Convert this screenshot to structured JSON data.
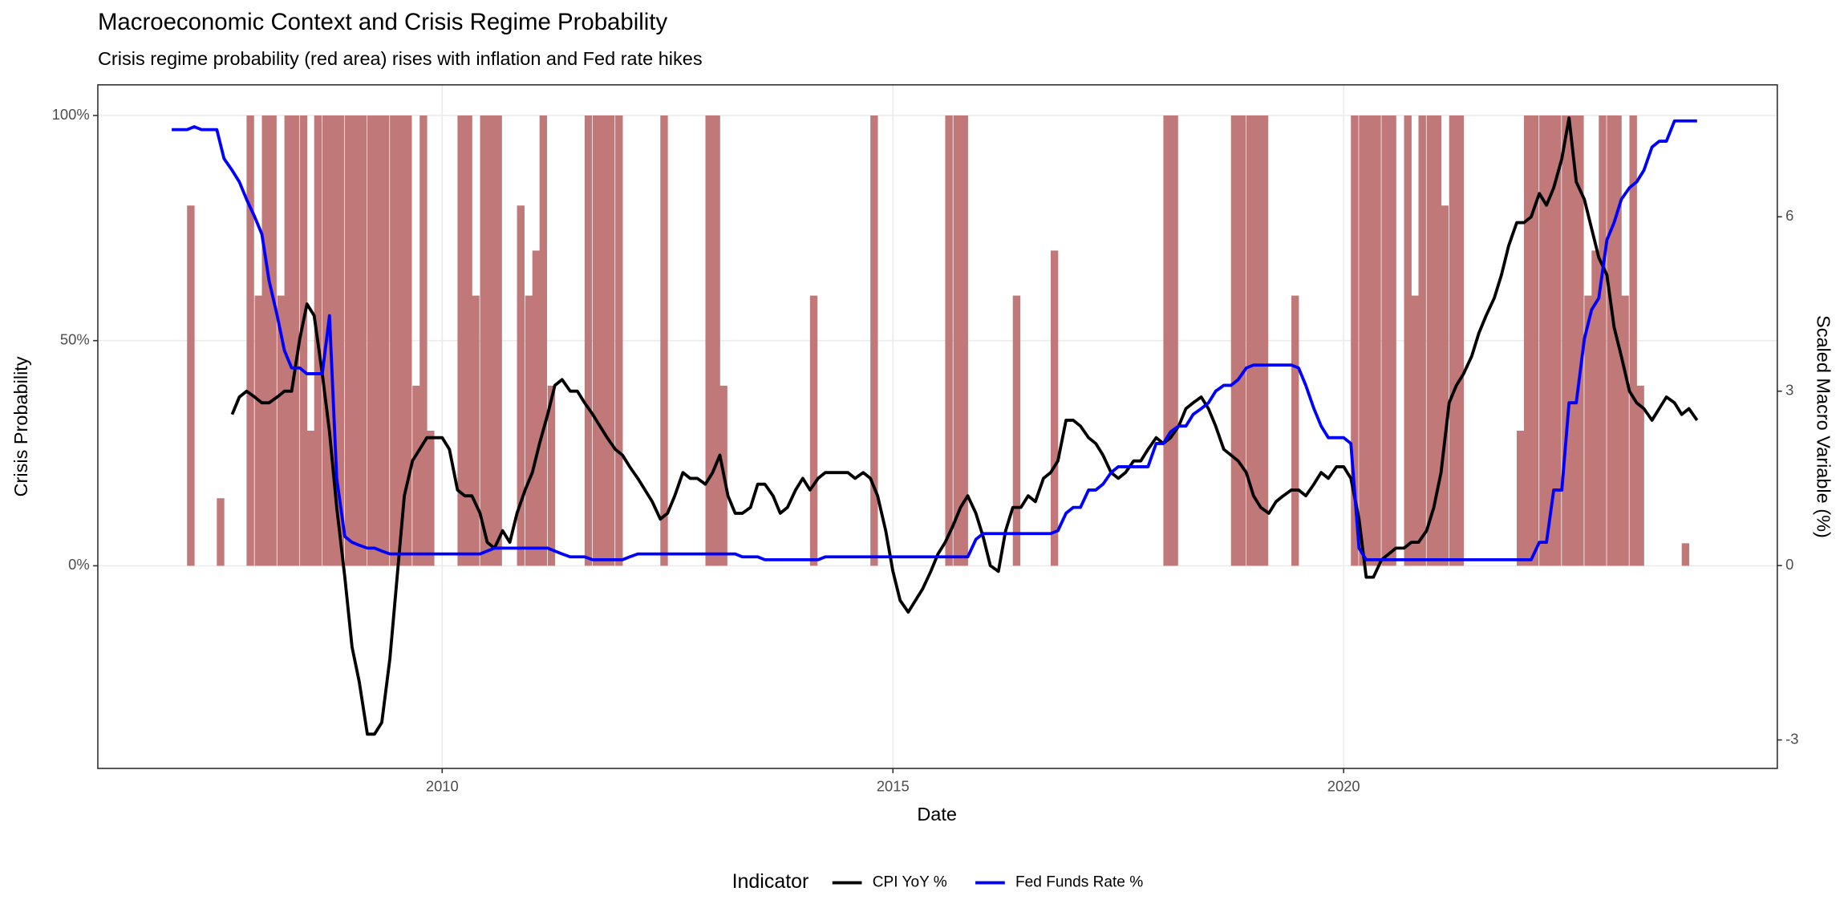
{
  "chart_data": {
    "type": "line",
    "title": "Macroeconomic Context and Crisis Regime Probability",
    "subtitle": "Crisis regime probability (red area) rises with inflation and Fed rate hikes",
    "x_label": "Date",
    "y_label": "Crisis Probability",
    "y2_label": "Scaled Macro Variable (%)",
    "legend_title": "Indicator",
    "legend_position": "bottom",
    "grid": true,
    "xlim": [
      2006.18,
      2024.81
    ],
    "xticks": [
      2010,
      2015,
      2020
    ],
    "ylim": [
      -45,
      106.8
    ],
    "yticks": [
      {
        "value": 0,
        "label": "0%"
      },
      {
        "value": 50,
        "label": "50%"
      },
      {
        "value": 100,
        "label": "100%"
      }
    ],
    "y2lim": [
      -3.49,
      8.27
    ],
    "y2ticks": [
      -3,
      0,
      3,
      6
    ],
    "x": [
      2007.0,
      2007.08,
      2007.17,
      2007.25,
      2007.33,
      2007.42,
      2007.5,
      2007.58,
      2007.67,
      2007.75,
      2007.83,
      2007.92,
      2008.0,
      2008.08,
      2008.17,
      2008.25,
      2008.33,
      2008.42,
      2008.5,
      2008.58,
      2008.67,
      2008.75,
      2008.83,
      2008.92,
      2009.0,
      2009.08,
      2009.17,
      2009.25,
      2009.33,
      2009.42,
      2009.5,
      2009.58,
      2009.67,
      2009.75,
      2009.83,
      2009.92,
      2010.0,
      2010.08,
      2010.17,
      2010.25,
      2010.33,
      2010.42,
      2010.5,
      2010.58,
      2010.67,
      2010.75,
      2010.83,
      2010.92,
      2011.0,
      2011.08,
      2011.17,
      2011.25,
      2011.33,
      2011.42,
      2011.5,
      2011.58,
      2011.67,
      2011.75,
      2011.83,
      2011.92,
      2012.0,
      2012.08,
      2012.17,
      2012.25,
      2012.33,
      2012.42,
      2012.5,
      2012.58,
      2012.67,
      2012.75,
      2012.83,
      2012.92,
      2013.0,
      2013.08,
      2013.17,
      2013.25,
      2013.33,
      2013.42,
      2013.5,
      2013.58,
      2013.67,
      2013.75,
      2013.83,
      2013.92,
      2014.0,
      2014.08,
      2014.17,
      2014.25,
      2014.33,
      2014.42,
      2014.5,
      2014.58,
      2014.67,
      2014.75,
      2014.83,
      2014.92,
      2015.0,
      2015.08,
      2015.17,
      2015.25,
      2015.33,
      2015.42,
      2015.5,
      2015.58,
      2015.67,
      2015.75,
      2015.83,
      2015.92,
      2016.0,
      2016.08,
      2016.17,
      2016.25,
      2016.33,
      2016.42,
      2016.5,
      2016.58,
      2016.67,
      2016.75,
      2016.83,
      2016.92,
      2017.0,
      2017.08,
      2017.17,
      2017.25,
      2017.33,
      2017.42,
      2017.5,
      2017.58,
      2017.67,
      2017.75,
      2017.83,
      2017.92,
      2018.0,
      2018.08,
      2018.17,
      2018.25,
      2018.33,
      2018.42,
      2018.5,
      2018.58,
      2018.67,
      2018.75,
      2018.83,
      2018.92,
      2019.0,
      2019.08,
      2019.17,
      2019.25,
      2019.33,
      2019.42,
      2019.5,
      2019.58,
      2019.67,
      2019.75,
      2019.83,
      2019.92,
      2020.0,
      2020.08,
      2020.17,
      2020.25,
      2020.33,
      2020.42,
      2020.5,
      2020.58,
      2020.67,
      2020.75,
      2020.83,
      2020.92,
      2021.0,
      2021.08,
      2021.17,
      2021.25,
      2021.33,
      2021.42,
      2021.5,
      2021.58,
      2021.67,
      2021.75,
      2021.83,
      2021.92,
      2022.0,
      2022.08,
      2022.17,
      2022.25,
      2022.33,
      2022.42,
      2022.5,
      2022.58,
      2022.67,
      2022.75,
      2022.83,
      2022.92,
      2023.0,
      2023.08,
      2023.17,
      2023.25,
      2023.33,
      2023.42,
      2023.5,
      2023.58,
      2023.67,
      2023.75,
      2023.83,
      2023.92
    ],
    "area": {
      "color": "#c07878",
      "axis": "y",
      "width": 0.0833,
      "values": [
        0,
        0,
        80,
        0,
        0,
        0,
        15,
        0,
        0,
        0,
        100,
        60,
        100,
        100,
        60,
        100,
        100,
        100,
        30,
        100,
        100,
        100,
        100,
        100,
        100,
        100,
        100,
        100,
        100,
        100,
        100,
        100,
        40,
        100,
        30,
        0,
        0,
        0,
        100,
        100,
        60,
        100,
        100,
        100,
        0,
        0,
        80,
        60,
        70,
        100,
        40,
        0,
        0,
        0,
        0,
        100,
        100,
        100,
        100,
        100,
        0,
        0,
        0,
        0,
        0,
        100,
        0,
        0,
        0,
        0,
        0,
        100,
        100,
        40,
        0,
        0,
        0,
        0,
        0,
        0,
        0,
        0,
        0,
        0,
        0,
        60,
        0,
        0,
        0,
        0,
        0,
        0,
        0,
        100,
        0,
        0,
        0,
        0,
        0,
        0,
        0,
        0,
        0,
        100,
        100,
        100,
        0,
        0,
        0,
        0,
        0,
        0,
        60,
        0,
        0,
        0,
        0,
        70,
        0,
        0,
        0,
        0,
        0,
        0,
        0,
        0,
        0,
        0,
        0,
        0,
        0,
        0,
        100,
        100,
        0,
        0,
        0,
        0,
        0,
        0,
        0,
        100,
        100,
        100,
        100,
        100,
        0,
        0,
        0,
        60,
        0,
        0,
        0,
        0,
        0,
        0,
        0,
        100,
        100,
        100,
        100,
        100,
        100,
        0,
        100,
        60,
        100,
        100,
        100,
        80,
        100,
        100,
        0,
        0,
        0,
        0,
        0,
        0,
        0,
        30,
        100,
        100,
        100,
        100,
        100,
        100,
        100,
        100,
        60,
        70,
        100,
        100,
        100,
        60,
        100,
        40,
        0,
        0,
        0,
        0,
        0,
        5,
        0,
        0
      ]
    },
    "series": [
      {
        "name": "CPI YoY %",
        "color": "#000000",
        "axis": "y2",
        "values": [
          null,
          null,
          null,
          null,
          null,
          null,
          null,
          null,
          2.6,
          2.9,
          3.0,
          2.9,
          2.8,
          2.8,
          2.9,
          3.0,
          3.0,
          3.9,
          4.5,
          4.3,
          3.3,
          2.3,
          1.0,
          -0.2,
          -1.4,
          -2.0,
          -2.9,
          -2.9,
          -2.7,
          -1.6,
          -0.2,
          1.2,
          1.8,
          2.0,
          2.2,
          2.2,
          2.2,
          2.0,
          1.3,
          1.2,
          1.2,
          0.9,
          0.4,
          0.3,
          0.6,
          0.4,
          0.9,
          1.3,
          1.6,
          2.1,
          2.6,
          3.1,
          3.2,
          3.0,
          3.0,
          2.8,
          2.6,
          2.4,
          2.2,
          2.0,
          1.9,
          1.7,
          1.5,
          1.3,
          1.1,
          0.8,
          0.9,
          1.2,
          1.6,
          1.5,
          1.5,
          1.4,
          1.6,
          1.9,
          1.2,
          0.9,
          0.9,
          1.0,
          1.4,
          1.4,
          1.2,
          0.9,
          1.0,
          1.3,
          1.5,
          1.3,
          1.5,
          1.6,
          1.6,
          1.6,
          1.6,
          1.5,
          1.6,
          1.5,
          1.2,
          0.6,
          -0.1,
          -0.6,
          -0.8,
          -0.6,
          -0.4,
          -0.1,
          0.2,
          0.4,
          0.7,
          1.0,
          1.2,
          0.9,
          0.5,
          0.0,
          -0.1,
          0.6,
          1.0,
          1.0,
          1.2,
          1.1,
          1.5,
          1.6,
          1.8,
          2.5,
          2.5,
          2.4,
          2.2,
          2.1,
          1.9,
          1.6,
          1.5,
          1.6,
          1.8,
          1.8,
          2.0,
          2.2,
          2.1,
          2.2,
          2.4,
          2.7,
          2.8,
          2.9,
          2.7,
          2.4,
          2.0,
          1.9,
          1.8,
          1.6,
          1.2,
          1.0,
          0.9,
          1.1,
          1.2,
          1.3,
          1.3,
          1.2,
          1.4,
          1.6,
          1.5,
          1.7,
          1.7,
          1.5,
          0.8,
          -0.2,
          -0.2,
          0.1,
          0.2,
          0.3,
          0.3,
          0.4,
          0.4,
          0.6,
          1.0,
          1.6,
          2.8,
          3.1,
          3.3,
          3.6,
          4.0,
          4.3,
          4.6,
          5.0,
          5.5,
          5.9,
          5.9,
          6.0,
          6.4,
          6.2,
          6.5,
          7.0,
          7.7,
          6.6,
          6.3,
          5.8,
          5.3,
          5.0,
          4.1,
          3.6,
          3.0,
          2.8,
          2.7,
          2.5,
          2.7,
          2.9,
          2.8,
          2.6,
          2.7,
          2.5
        ]
      },
      {
        "name": "Fed Funds Rate %",
        "color": "#0000ff",
        "axis": "y2",
        "values": [
          7.5,
          7.5,
          7.5,
          7.55,
          7.5,
          7.5,
          7.5,
          7.0,
          6.8,
          6.6,
          6.3,
          6.0,
          5.7,
          4.9,
          4.3,
          3.7,
          3.4,
          3.4,
          3.3,
          3.3,
          3.3,
          4.3,
          1.5,
          0.5,
          0.4,
          0.35,
          0.3,
          0.3,
          0.25,
          0.2,
          0.2,
          0.2,
          0.2,
          0.2,
          0.2,
          0.2,
          0.2,
          0.2,
          0.2,
          0.2,
          0.2,
          0.2,
          0.25,
          0.3,
          0.3,
          0.3,
          0.3,
          0.3,
          0.3,
          0.3,
          0.3,
          0.25,
          0.2,
          0.15,
          0.15,
          0.15,
          0.1,
          0.1,
          0.1,
          0.1,
          0.1,
          0.15,
          0.2,
          0.2,
          0.2,
          0.2,
          0.2,
          0.2,
          0.2,
          0.2,
          0.2,
          0.2,
          0.2,
          0.2,
          0.2,
          0.2,
          0.15,
          0.15,
          0.15,
          0.1,
          0.1,
          0.1,
          0.1,
          0.1,
          0.1,
          0.1,
          0.1,
          0.15,
          0.15,
          0.15,
          0.15,
          0.15,
          0.15,
          0.15,
          0.15,
          0.15,
          0.15,
          0.15,
          0.15,
          0.15,
          0.15,
          0.15,
          0.15,
          0.15,
          0.15,
          0.15,
          0.15,
          0.45,
          0.55,
          0.55,
          0.55,
          0.55,
          0.55,
          0.55,
          0.55,
          0.55,
          0.55,
          0.55,
          0.6,
          0.9,
          1.0,
          1.0,
          1.3,
          1.3,
          1.4,
          1.6,
          1.7,
          1.7,
          1.7,
          1.7,
          1.7,
          2.1,
          2.1,
          2.3,
          2.4,
          2.4,
          2.6,
          2.7,
          2.8,
          3.0,
          3.1,
          3.1,
          3.2,
          3.4,
          3.45,
          3.45,
          3.45,
          3.45,
          3.45,
          3.45,
          3.4,
          3.1,
          2.7,
          2.4,
          2.2,
          2.2,
          2.2,
          2.1,
          0.3,
          0.1,
          0.1,
          0.1,
          0.1,
          0.1,
          0.1,
          0.1,
          0.1,
          0.1,
          0.1,
          0.1,
          0.1,
          0.1,
          0.1,
          0.1,
          0.1,
          0.1,
          0.1,
          0.1,
          0.1,
          0.1,
          0.1,
          0.1,
          0.4,
          0.4,
          1.3,
          1.3,
          2.8,
          2.8,
          3.9,
          4.4,
          4.6,
          5.6,
          5.9,
          6.3,
          6.5,
          6.6,
          6.8,
          7.2,
          7.3,
          7.3,
          7.65,
          7.65,
          7.65,
          7.65
        ]
      }
    ]
  }
}
